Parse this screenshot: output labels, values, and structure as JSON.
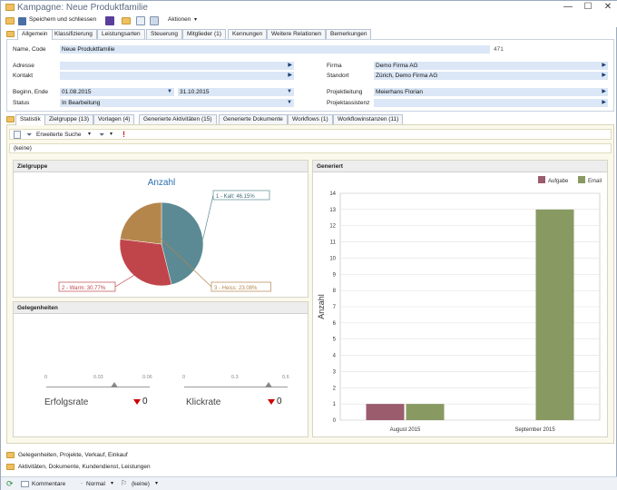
{
  "window": {
    "title": "Kampagne: Neue Produktfamilie"
  },
  "toolbar": {
    "save_close": "Speichern und schliessen",
    "actions": "Aktionen"
  },
  "top_tabs": [
    "Allgemein",
    "Klassifizierung",
    "Leistungsarten",
    "Steuerung",
    "Mitglieder (1)",
    "Kennungen",
    "Weitere Relationen",
    "Bemerkungen"
  ],
  "form": {
    "name_label": "Name, Code",
    "name_value": "Neue Produktfamilie",
    "code_value": "471",
    "address_label": "Adresse",
    "contact_label": "Kontakt",
    "begin_label": "Beginn, Ende",
    "begin_value": "01.08.2015",
    "end_value": "31.10.2015",
    "status_label": "Status",
    "status_value": "In Bearbeitung",
    "firma_label": "Firma",
    "firma_value": "Demo Firma AG",
    "standort_label": "Standort",
    "standort_value": "Zürich, Demo Firma AG",
    "projektleitung_label": "Projektleitung",
    "projektleitung_value": "Meierhans Florian",
    "projektassistenz_label": "Projektassistenz"
  },
  "bottom_tabs": [
    "Statistik",
    "Zielgruppe (13)",
    "Vorlagen (4)",
    "Generierte Aktivitäten (15)",
    "Generierte Dokumente",
    "Workflows (1)",
    "Workflowinstanzen (11)"
  ],
  "filterbar": {
    "search": "Erweiterte Suche",
    "exclaim": "!",
    "filter_value": "(keine)"
  },
  "zielgruppe": {
    "header": "Zielgruppe",
    "chart_data": {
      "type": "pie",
      "title": "Anzahl",
      "slices": [
        {
          "label": "1 - Kalt: 46.15%",
          "value": 46.15,
          "color": "#5b8a94"
        },
        {
          "label": "2 - Warm: 30.77%",
          "value": 30.77,
          "color": "#c0454a"
        },
        {
          "label": "3 - Heiss: 23.08%",
          "value": 23.08,
          "color": "#b5864c"
        }
      ]
    }
  },
  "gelegenheiten": {
    "header": "Gelegenheiten",
    "gauges": [
      {
        "name": "Erfolgsrate",
        "ticks": [
          "0",
          "0.03",
          "0.06"
        ],
        "value": "0"
      },
      {
        "name": "Klickrate",
        "ticks": [
          "0",
          "0.3",
          "0.6"
        ],
        "value": "0"
      }
    ]
  },
  "generiert": {
    "header": "Generiert",
    "chart_data": {
      "type": "bar",
      "categories": [
        "August 2015",
        "September 2015"
      ],
      "series": [
        {
          "name": "Aufgabe",
          "values": [
            1,
            0
          ],
          "color": "#9b5c6e"
        },
        {
          "name": "Email",
          "values": [
            1,
            13
          ],
          "color": "#889a62"
        }
      ],
      "ylabel": "Anzahl",
      "ylim": [
        0,
        14
      ],
      "yticks": [
        "0",
        "1",
        "2",
        "3",
        "4",
        "5",
        "6",
        "7",
        "8",
        "9",
        "10",
        "11",
        "12",
        "13",
        "14"
      ],
      "legend": "top-right"
    }
  },
  "folders": [
    "Gelegenheiten, Projekte, Verkauf, Einkauf",
    "Aktivitäten, Dokumente, Kundendienst, Leistungen"
  ],
  "statusbar": {
    "comments": "Kommentare",
    "priority": "Normal",
    "flag": "(keine)"
  }
}
